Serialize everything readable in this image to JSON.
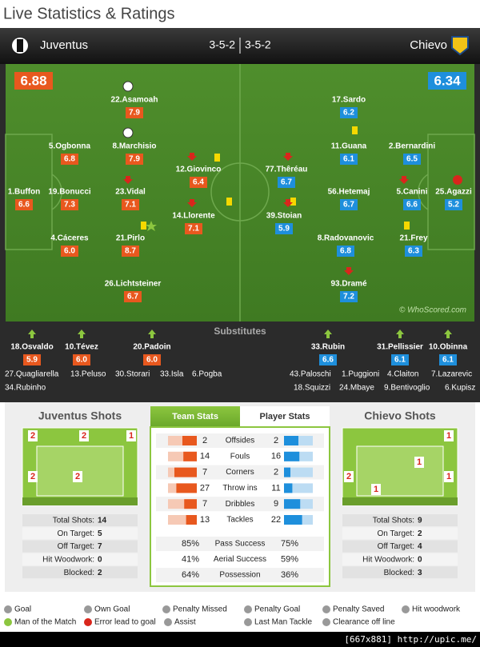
{
  "header": {
    "title": "Live Statistics & Ratings"
  },
  "match": {
    "home": {
      "name": "Juventus",
      "formation": "3-5-2",
      "rating": "6.88"
    },
    "away": {
      "name": "Chievo",
      "formation": "3-5-2",
      "rating": "6.34"
    }
  },
  "pitch": {
    "home": [
      {
        "name": "22.Asamoah",
        "rating": "7.9"
      },
      {
        "name": "5.Ogbonna",
        "rating": "6.8"
      },
      {
        "name": "8.Marchisio",
        "rating": "7.9"
      },
      {
        "name": "12.Giovinco",
        "rating": "6.4"
      },
      {
        "name": "1.Buffon",
        "rating": "6.6"
      },
      {
        "name": "19.Bonucci",
        "rating": "7.3"
      },
      {
        "name": "23.Vidal",
        "rating": "7.1"
      },
      {
        "name": "14.Llorente",
        "rating": "7.1"
      },
      {
        "name": "4.Cáceres",
        "rating": "6.0"
      },
      {
        "name": "21.Pirlo",
        "rating": "8.7"
      },
      {
        "name": "26.Lichtsteiner",
        "rating": "6.7"
      }
    ],
    "away": [
      {
        "name": "17.Sardo",
        "rating": "6.2"
      },
      {
        "name": "11.Guana",
        "rating": "6.1"
      },
      {
        "name": "2.Bernardini",
        "rating": "6.5"
      },
      {
        "name": "77.Thêréau",
        "rating": "6.7"
      },
      {
        "name": "56.Hetemaj",
        "rating": "6.7"
      },
      {
        "name": "5.Canini",
        "rating": "6.6"
      },
      {
        "name": "25.Agazzi",
        "rating": "5.2"
      },
      {
        "name": "39.Stoian",
        "rating": "5.9"
      },
      {
        "name": "8.Radovanovic",
        "rating": "6.8"
      },
      {
        "name": "21.Frey",
        "rating": "6.3"
      },
      {
        "name": "93.Dramé",
        "rating": "7.2"
      }
    ],
    "watermark": "© WhoScored.com"
  },
  "substitutes": {
    "title": "Substitutes",
    "home": {
      "used": [
        {
          "name": "18.Osvaldo",
          "rating": "5.9"
        },
        {
          "name": "10.Tévez",
          "rating": "6.0"
        },
        {
          "name": "20.Padoin",
          "rating": "6.0"
        }
      ],
      "unused": [
        [
          "27.Quagliarella",
          "13.Peluso",
          "30.Storari",
          "33.Isla",
          "6.Pogba"
        ],
        [
          "34.Rubinho"
        ]
      ]
    },
    "away": {
      "used": [
        {
          "name": "33.Rubin",
          "rating": "6.6"
        },
        {
          "name": "31.Pellissier",
          "rating": "6.1"
        },
        {
          "name": "10.Obinna",
          "rating": "6.1"
        }
      ],
      "unused": [
        [
          "43.Paloschi",
          "1.Puggioni",
          "4.Claiton",
          "7.Lazarevic"
        ],
        [
          "18.Squizzi",
          "24.Mbaye",
          "9.Bentivoglio",
          "6.Kupisz"
        ]
      ]
    }
  },
  "shots": {
    "home": {
      "title": "Juventus Shots",
      "zones": [
        2,
        2,
        1,
        2,
        2
      ],
      "stats": [
        {
          "label": "Total Shots:",
          "value": 14
        },
        {
          "label": "On Target:",
          "value": 5
        },
        {
          "label": "Off Target:",
          "value": 7
        },
        {
          "label": "Hit Woodwork:",
          "value": 0
        },
        {
          "label": "Blocked:",
          "value": 2
        }
      ]
    },
    "away": {
      "title": "Chievo Shots",
      "zones": [
        1,
        1,
        2,
        1,
        1
      ],
      "stats": [
        {
          "label": "Total Shots:",
          "value": 9
        },
        {
          "label": "On Target:",
          "value": 2
        },
        {
          "label": "Off Target:",
          "value": 4
        },
        {
          "label": "Hit Woodwork:",
          "value": 0
        },
        {
          "label": "Blocked:",
          "value": 3
        }
      ]
    }
  },
  "stats": {
    "tabs": [
      "Team Stats",
      "Player Stats"
    ],
    "rows": [
      {
        "home": 2,
        "label": "Offsides",
        "away": 2
      },
      {
        "home": 14,
        "label": "Fouls",
        "away": 16
      },
      {
        "home": 7,
        "label": "Corners",
        "away": 2
      },
      {
        "home": 27,
        "label": "Throw ins",
        "away": 11
      },
      {
        "home": 7,
        "label": "Dribbles",
        "away": 9
      },
      {
        "home": 13,
        "label": "Tackles",
        "away": 22
      }
    ],
    "percentages": [
      {
        "home": "85%",
        "label": "Pass Success",
        "away": "75%"
      },
      {
        "home": "41%",
        "label": "Aerial Success",
        "away": "59%"
      },
      {
        "home": "64%",
        "label": "Possession",
        "away": "36%"
      }
    ]
  },
  "legend": [
    [
      "Goal",
      "Own Goal",
      "Penalty Missed",
      "Penalty Goal",
      "Penalty Saved",
      "Hit woodwork"
    ],
    [
      "Man of the Match",
      "Error lead to goal",
      "Assist",
      "Last Man Tackle",
      "Clearance off line"
    ]
  ],
  "footer": "[667x881] http://upic.me/"
}
